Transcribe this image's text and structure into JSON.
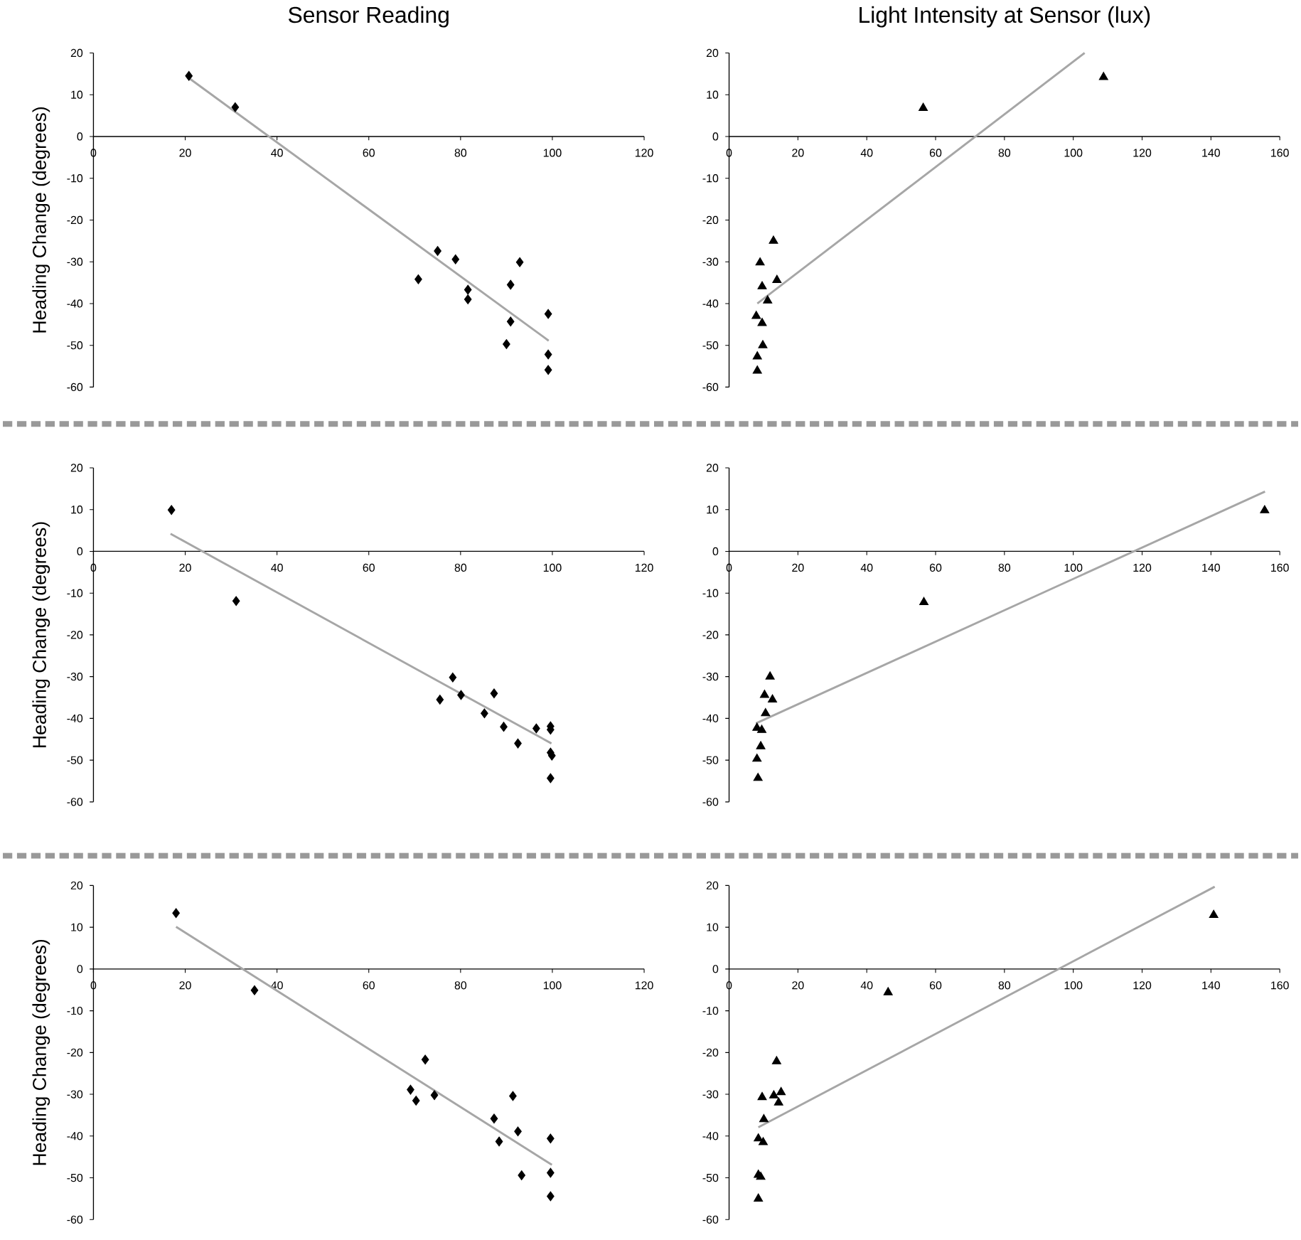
{
  "chart_data": [
    {
      "type": "scatter",
      "title": "Sensor Reading",
      "ylabel": "Heading Change (degrees)",
      "xlim": [
        0,
        120
      ],
      "ylim": [
        -60,
        20
      ],
      "xticks": [
        0,
        20,
        40,
        60,
        80,
        100,
        120
      ],
      "yticks": [
        -60,
        -50,
        -40,
        -30,
        -20,
        -10,
        0,
        10,
        20
      ],
      "series": [
        {
          "type": "scatter",
          "marker": "diamond",
          "color": "#000000",
          "x": [
            20.8,
            30.9,
            70.8,
            75,
            78.9,
            81.6,
            81.6,
            90.9,
            92.9,
            90.9,
            90,
            99.1,
            99.1,
            99.1
          ],
          "values": [
            14.5,
            7,
            -34.2,
            -27.4,
            -29.4,
            -36.7,
            -39,
            -35.5,
            -30.1,
            -44.3,
            -49.7,
            -42.5,
            -52.2,
            -55.9
          ]
        },
        {
          "type": "line",
          "color": "#a6a6a6",
          "x": [
            20.8,
            99.2
          ],
          "values": [
            14,
            -48.9
          ]
        }
      ]
    },
    {
      "type": "scatter",
      "title": "Light Intensity at Sensor (lux)",
      "xlim": [
        0,
        160
      ],
      "ylim": [
        -60,
        20
      ],
      "xticks": [
        0,
        20,
        40,
        60,
        80,
        100,
        120,
        140,
        160
      ],
      "yticks": [
        -60,
        -50,
        -40,
        -30,
        -20,
        -10,
        0,
        10,
        20
      ],
      "series": [
        {
          "type": "scatter",
          "marker": "triangle",
          "color": "#000000",
          "x": [
            56.4,
            108.8,
            9,
            12.9,
            13.9,
            9.6,
            11.2,
            7.9,
            9.6,
            9.8,
            8.2,
            8.2
          ],
          "values": [
            6.8,
            14.2,
            -30.2,
            -25,
            -34.4,
            -35.9,
            -39.3,
            -43,
            -44.7,
            -50,
            -52.7,
            -56.1
          ]
        },
        {
          "type": "line",
          "color": "#a6a6a6",
          "x": [
            8.2,
            103.3
          ],
          "values": [
            -40,
            20
          ]
        }
      ]
    },
    {
      "type": "scatter",
      "ylabel": "Heading Change (degrees)",
      "xlim": [
        0,
        120
      ],
      "ylim": [
        -60,
        20
      ],
      "xticks": [
        0,
        20,
        40,
        60,
        80,
        100,
        120
      ],
      "yticks": [
        -60,
        -50,
        -40,
        -30,
        -20,
        -10,
        0,
        10,
        20
      ],
      "series": [
        {
          "type": "scatter",
          "marker": "diamond",
          "color": "#000000",
          "x": [
            17,
            31.1,
            75.5,
            78.3,
            80.1,
            87.3,
            85.2,
            89.4,
            92.5,
            96.5,
            99.6,
            99.6,
            99.6,
            99.9,
            99.6
          ],
          "values": [
            9.9,
            -11.9,
            -35.5,
            -30.2,
            -34.4,
            -34,
            -38.8,
            -42,
            -46,
            -42.4,
            -41.9,
            -42.7,
            -48.2,
            -48.9,
            -54.3
          ]
        },
        {
          "type": "line",
          "color": "#a6a6a6",
          "x": [
            16.8,
            99.8
          ],
          "values": [
            4.2,
            -46
          ]
        }
      ]
    },
    {
      "type": "scatter",
      "xlim": [
        0,
        160
      ],
      "ylim": [
        -60,
        20
      ],
      "xticks": [
        0,
        20,
        40,
        60,
        80,
        100,
        120,
        140,
        160
      ],
      "yticks": [
        -60,
        -50,
        -40,
        -30,
        -20,
        -10,
        0,
        10,
        20
      ],
      "series": [
        {
          "type": "scatter",
          "marker": "triangle",
          "color": "#000000",
          "x": [
            155.6,
            56.6,
            11.9,
            10.3,
            12.6,
            10.6,
            8.1,
            9.5,
            9.2,
            8.1,
            8.4
          ],
          "values": [
            9.8,
            -12.2,
            -30,
            -34.4,
            -35.5,
            -38.8,
            -42.3,
            -42.8,
            -46.7,
            -49.7,
            -54.3
          ]
        },
        {
          "type": "line",
          "color": "#a6a6a6",
          "x": [
            7.8,
            155.7
          ],
          "values": [
            -41.2,
            14.3
          ]
        }
      ]
    },
    {
      "type": "scatter",
      "ylabel": "Heading Change (degrees)",
      "xlim": [
        0,
        120
      ],
      "ylim": [
        -60,
        20
      ],
      "xticks": [
        0,
        20,
        40,
        60,
        80,
        100,
        120
      ],
      "yticks": [
        -60,
        -50,
        -40,
        -30,
        -20,
        -10,
        0,
        10,
        20
      ],
      "series": [
        {
          "type": "scatter",
          "marker": "diamond",
          "color": "#000000",
          "x": [
            18,
            35.1,
            72.3,
            69.1,
            70.3,
            74.3,
            87.3,
            88.4,
            91.4,
            92.5,
            93.3,
            99.6,
            99.6,
            99.6
          ],
          "values": [
            13.4,
            -5.1,
            -21.7,
            -28.9,
            -31.5,
            -30.2,
            -35.8,
            -41.3,
            -30.4,
            -38.9,
            -49.4,
            -40.6,
            -48.8,
            -54.4
          ]
        },
        {
          "type": "line",
          "color": "#a6a6a6",
          "x": [
            18,
            99.9
          ],
          "values": [
            10.1,
            -46.9
          ]
        }
      ]
    },
    {
      "type": "scatter",
      "xlim": [
        0,
        160
      ],
      "ylim": [
        -60,
        20
      ],
      "xticks": [
        0,
        20,
        40,
        60,
        80,
        100,
        120,
        140,
        160
      ],
      "yticks": [
        -60,
        -50,
        -40,
        -30,
        -20,
        -10,
        0,
        10,
        20
      ],
      "series": [
        {
          "type": "scatter",
          "marker": "triangle",
          "color": "#000000",
          "x": [
            140.8,
            46.2,
            13.8,
            9.6,
            13,
            15.1,
            14.4,
            10.1,
            8.5,
            9.9,
            8.5,
            9.2,
            8.5
          ],
          "values": [
            12.9,
            -5.6,
            -22.1,
            -30.7,
            -30.3,
            -29.5,
            -32,
            -36,
            -40.6,
            -41.5,
            -49.3,
            -49.8,
            -55
          ]
        },
        {
          "type": "line",
          "color": "#a6a6a6",
          "x": [
            8.5,
            141.1
          ],
          "values": [
            -37.9,
            19.7
          ]
        }
      ]
    }
  ]
}
